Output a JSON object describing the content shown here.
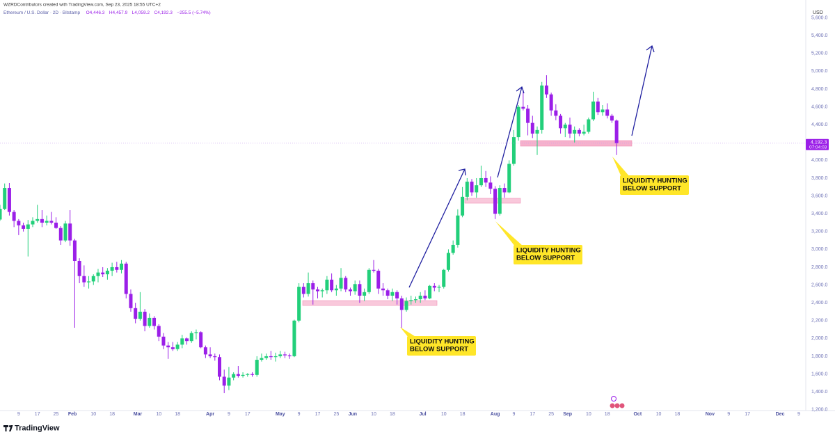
{
  "header": {
    "credit": "WZRDContributors created with TradingView.com, Sep 23, 2025 18:55 UTC+2",
    "symbol": "Ethereum / U.S. Dollar · 2D · Bitstamp",
    "ohlc": [
      "O4,446.3",
      "H4,457.9",
      "L4,059.2",
      "C4,192.3"
    ],
    "change": "−255.5 (−5.74%)",
    "logo": "TradingView"
  },
  "chart_data": {
    "type": "candlestick",
    "currency": "USD",
    "up_color": "#22cf7a",
    "down_color": "#9b1fe8",
    "grid": false,
    "ylim": [
      1190,
      5800
    ],
    "yticks": [
      {
        "value": 1200,
        "label": "1,200.0"
      },
      {
        "value": 1400,
        "label": "1,400.0"
      },
      {
        "value": 1600,
        "label": "1,600.0"
      },
      {
        "value": 1800,
        "label": "1,800.0"
      },
      {
        "value": 2000,
        "label": "2,000.0"
      },
      {
        "value": 2200,
        "label": "2,200.0"
      },
      {
        "value": 2400,
        "label": "2,400.0"
      },
      {
        "value": 2600,
        "label": "2,600.0"
      },
      {
        "value": 2800,
        "label": "2,800.0"
      },
      {
        "value": 3000,
        "label": "3,000.0"
      },
      {
        "value": 3200,
        "label": "3,200.0"
      },
      {
        "value": 3400,
        "label": "3,400.0"
      },
      {
        "value": 3600,
        "label": "3,600.0"
      },
      {
        "value": 3800,
        "label": "3,800.0"
      },
      {
        "value": 4000,
        "label": "4,000.0"
      },
      {
        "value": 4200,
        "label": "4,200.0"
      },
      {
        "value": 4400,
        "label": "4,400.0"
      },
      {
        "value": 4600,
        "label": "4,600.0"
      },
      {
        "value": 4800,
        "label": "4,800.0"
      },
      {
        "value": 5000,
        "label": "5,000.0"
      },
      {
        "value": 5200,
        "label": "5,200.0"
      },
      {
        "value": 5400,
        "label": "5,400.0"
      },
      {
        "value": 5600,
        "label": "5,600.0"
      }
    ],
    "xlim": [
      "2025-01-01",
      "2025-12-12"
    ],
    "xticks": [
      {
        "value": "2025-01-09",
        "label": "9"
      },
      {
        "value": "2025-01-17",
        "label": "17"
      },
      {
        "value": "2025-01-25",
        "label": "25"
      },
      {
        "value": "2025-02-01",
        "label": "Feb"
      },
      {
        "value": "2025-02-10",
        "label": "10"
      },
      {
        "value": "2025-02-18",
        "label": "18"
      },
      {
        "value": "2025-03-01",
        "label": "Mar"
      },
      {
        "value": "2025-03-10",
        "label": "10"
      },
      {
        "value": "2025-03-18",
        "label": "18"
      },
      {
        "value": "2025-04-01",
        "label": "Apr"
      },
      {
        "value": "2025-04-09",
        "label": "9"
      },
      {
        "value": "2025-04-17",
        "label": "17"
      },
      {
        "value": "2025-05-01",
        "label": "May"
      },
      {
        "value": "2025-05-09",
        "label": "9"
      },
      {
        "value": "2025-05-17",
        "label": "17"
      },
      {
        "value": "2025-05-25",
        "label": "25"
      },
      {
        "value": "2025-06-01",
        "label": "Jun"
      },
      {
        "value": "2025-06-10",
        "label": "10"
      },
      {
        "value": "2025-06-18",
        "label": "18"
      },
      {
        "value": "2025-07-01",
        "label": "Jul"
      },
      {
        "value": "2025-07-10",
        "label": "10"
      },
      {
        "value": "2025-07-18",
        "label": "18"
      },
      {
        "value": "2025-08-01",
        "label": "Aug"
      },
      {
        "value": "2025-08-09",
        "label": "9"
      },
      {
        "value": "2025-08-17",
        "label": "17"
      },
      {
        "value": "2025-08-25",
        "label": "25"
      },
      {
        "value": "2025-09-01",
        "label": "Sep"
      },
      {
        "value": "2025-09-10",
        "label": "10"
      },
      {
        "value": "2025-09-18",
        "label": "18"
      },
      {
        "value": "2025-10-01",
        "label": "Oct"
      },
      {
        "value": "2025-10-10",
        "label": "10"
      },
      {
        "value": "2025-10-18",
        "label": "18"
      },
      {
        "value": "2025-11-01",
        "label": "Nov"
      },
      {
        "value": "2025-11-09",
        "label": "9"
      },
      {
        "value": "2025-11-17",
        "label": "17"
      },
      {
        "value": "2025-12-01",
        "label": "Dec"
      },
      {
        "value": "2025-12-09",
        "label": "9"
      }
    ],
    "x": [
      "2025-01-01",
      "2025-01-03",
      "2025-01-05",
      "2025-01-07",
      "2025-01-09",
      "2025-01-11",
      "2025-01-13",
      "2025-01-15",
      "2025-01-17",
      "2025-01-19",
      "2025-01-21",
      "2025-01-23",
      "2025-01-25",
      "2025-01-27",
      "2025-01-29",
      "2025-01-31",
      "2025-02-02",
      "2025-02-04",
      "2025-02-06",
      "2025-02-08",
      "2025-02-10",
      "2025-02-12",
      "2025-02-14",
      "2025-02-16",
      "2025-02-18",
      "2025-02-20",
      "2025-02-22",
      "2025-02-24",
      "2025-02-26",
      "2025-02-28",
      "2025-03-02",
      "2025-03-04",
      "2025-03-06",
      "2025-03-08",
      "2025-03-10",
      "2025-03-12",
      "2025-03-14",
      "2025-03-16",
      "2025-03-18",
      "2025-03-20",
      "2025-03-22",
      "2025-03-24",
      "2025-03-26",
      "2025-03-28",
      "2025-03-30",
      "2025-04-01",
      "2025-04-03",
      "2025-04-05",
      "2025-04-07",
      "2025-04-09",
      "2025-04-11",
      "2025-04-13",
      "2025-04-15",
      "2025-04-17",
      "2025-04-19",
      "2025-04-21",
      "2025-04-23",
      "2025-04-25",
      "2025-04-27",
      "2025-04-29",
      "2025-05-01",
      "2025-05-03",
      "2025-05-05",
      "2025-05-07",
      "2025-05-09",
      "2025-05-11",
      "2025-05-13",
      "2025-05-15",
      "2025-05-17",
      "2025-05-19",
      "2025-05-21",
      "2025-05-23",
      "2025-05-25",
      "2025-05-27",
      "2025-05-29",
      "2025-05-31",
      "2025-06-02",
      "2025-06-04",
      "2025-06-06",
      "2025-06-08",
      "2025-06-10",
      "2025-06-12",
      "2025-06-14",
      "2025-06-16",
      "2025-06-18",
      "2025-06-20",
      "2025-06-22",
      "2025-06-24",
      "2025-06-26",
      "2025-06-28",
      "2025-06-30",
      "2025-07-02",
      "2025-07-04",
      "2025-07-06",
      "2025-07-08",
      "2025-07-10",
      "2025-07-12",
      "2025-07-14",
      "2025-07-16",
      "2025-07-18",
      "2025-07-20",
      "2025-07-22",
      "2025-07-24",
      "2025-07-26",
      "2025-07-28",
      "2025-07-30",
      "2025-08-01",
      "2025-08-03",
      "2025-08-05",
      "2025-08-07",
      "2025-08-09",
      "2025-08-11",
      "2025-08-13",
      "2025-08-15",
      "2025-08-17",
      "2025-08-19",
      "2025-08-21",
      "2025-08-23",
      "2025-08-25",
      "2025-08-27",
      "2025-08-29",
      "2025-08-31",
      "2025-09-02",
      "2025-09-04",
      "2025-09-06",
      "2025-09-08",
      "2025-09-10",
      "2025-09-12",
      "2025-09-14",
      "2025-09-16",
      "2025-09-18",
      "2025-09-20",
      "2025-09-22"
    ],
    "ohlc": [
      [
        3335,
        3500,
        3320,
        3455
      ],
      [
        3455,
        3740,
        3440,
        3690
      ],
      [
        3690,
        3745,
        3380,
        3420
      ],
      [
        3420,
        3440,
        3250,
        3320
      ],
      [
        3320,
        3340,
        3160,
        3270
      ],
      [
        3270,
        3300,
        3200,
        3230
      ],
      [
        3230,
        3330,
        2920,
        3280
      ],
      [
        3280,
        3360,
        3250,
        3320
      ],
      [
        3320,
        3500,
        3300,
        3340
      ],
      [
        3340,
        3440,
        3250,
        3300
      ],
      [
        3300,
        3380,
        3270,
        3320
      ],
      [
        3320,
        3420,
        3280,
        3300
      ],
      [
        3300,
        3360,
        3230,
        3240
      ],
      [
        3240,
        3260,
        3050,
        3100
      ],
      [
        3100,
        3320,
        3080,
        3290
      ],
      [
        3290,
        3440,
        3040,
        3100
      ],
      [
        3100,
        3120,
        2120,
        2870
      ],
      [
        2870,
        2900,
        2620,
        2700
      ],
      [
        2700,
        2820,
        2580,
        2630
      ],
      [
        2630,
        2700,
        2560,
        2640
      ],
      [
        2640,
        2720,
        2600,
        2700
      ],
      [
        2700,
        2780,
        2630,
        2740
      ],
      [
        2740,
        2800,
        2690,
        2720
      ],
      [
        2720,
        2790,
        2660,
        2760
      ],
      [
        2760,
        2850,
        2700,
        2800
      ],
      [
        2800,
        2860,
        2740,
        2770
      ],
      [
        2770,
        2880,
        2730,
        2840
      ],
      [
        2840,
        2860,
        2450,
        2500
      ],
      [
        2500,
        2550,
        2300,
        2340
      ],
      [
        2340,
        2400,
        2170,
        2220
      ],
      [
        2220,
        2520,
        2200,
        2300
      ],
      [
        2300,
        2330,
        2080,
        2140
      ],
      [
        2140,
        2280,
        2120,
        2230
      ],
      [
        2230,
        2250,
        2100,
        2140
      ],
      [
        2140,
        2160,
        1970,
        2020
      ],
      [
        2020,
        2060,
        1880,
        1920
      ],
      [
        1920,
        1960,
        1770,
        1900
      ],
      [
        1900,
        1960,
        1860,
        1880
      ],
      [
        1880,
        1960,
        1860,
        1930
      ],
      [
        1930,
        2040,
        1890,
        2000
      ],
      [
        2000,
        2010,
        1930,
        1970
      ],
      [
        1970,
        2080,
        1950,
        2060
      ],
      [
        2060,
        2100,
        1990,
        2070
      ],
      [
        2070,
        2080,
        1890,
        1900
      ],
      [
        1900,
        1920,
        1780,
        1820
      ],
      [
        1820,
        1900,
        1780,
        1800
      ],
      [
        1800,
        1830,
        1750,
        1790
      ],
      [
        1790,
        1820,
        1530,
        1570
      ],
      [
        1570,
        1650,
        1385,
        1470
      ],
      [
        1470,
        1680,
        1420,
        1560
      ],
      [
        1560,
        1620,
        1530,
        1600
      ],
      [
        1600,
        1690,
        1560,
        1580
      ],
      [
        1580,
        1620,
        1560,
        1590
      ],
      [
        1590,
        1610,
        1570,
        1600
      ],
      [
        1600,
        1620,
        1570,
        1590
      ],
      [
        1590,
        1800,
        1570,
        1760
      ],
      [
        1760,
        1830,
        1740,
        1780
      ],
      [
        1780,
        1830,
        1760,
        1800
      ],
      [
        1800,
        1860,
        1760,
        1790
      ],
      [
        1790,
        1840,
        1740,
        1800
      ],
      [
        1800,
        1860,
        1780,
        1820
      ],
      [
        1820,
        1850,
        1780,
        1810
      ],
      [
        1810,
        1830,
        1770,
        1800
      ],
      [
        1800,
        2210,
        1790,
        2200
      ],
      [
        2200,
        2620,
        2180,
        2580
      ],
      [
        2580,
        2620,
        2460,
        2500
      ],
      [
        2500,
        2740,
        2470,
        2620
      ],
      [
        2620,
        2650,
        2380,
        2550
      ],
      [
        2550,
        2580,
        2450,
        2530
      ],
      [
        2530,
        2560,
        2460,
        2540
      ],
      [
        2540,
        2700,
        2500,
        2660
      ],
      [
        2660,
        2730,
        2520,
        2540
      ],
      [
        2540,
        2600,
        2480,
        2560
      ],
      [
        2560,
        2790,
        2530,
        2680
      ],
      [
        2680,
        2700,
        2520,
        2550
      ],
      [
        2550,
        2570,
        2480,
        2530
      ],
      [
        2530,
        2650,
        2490,
        2610
      ],
      [
        2610,
        2650,
        2400,
        2480
      ],
      [
        2480,
        2560,
        2420,
        2520
      ],
      [
        2520,
        2790,
        2500,
        2770
      ],
      [
        2770,
        2880,
        2740,
        2760
      ],
      [
        2760,
        2780,
        2500,
        2560
      ],
      [
        2560,
        2620,
        2480,
        2540
      ],
      [
        2540,
        2560,
        2440,
        2480
      ],
      [
        2480,
        2560,
        2420,
        2520
      ],
      [
        2520,
        2540,
        2380,
        2450
      ],
      [
        2450,
        2480,
        2120,
        2320
      ],
      [
        2320,
        2460,
        2300,
        2420
      ],
      [
        2420,
        2480,
        2380,
        2430
      ],
      [
        2430,
        2470,
        2400,
        2440
      ],
      [
        2440,
        2520,
        2400,
        2480
      ],
      [
        2480,
        2540,
        2430,
        2450
      ],
      [
        2450,
        2600,
        2440,
        2590
      ],
      [
        2590,
        2620,
        2530,
        2570
      ],
      [
        2570,
        2600,
        2520,
        2580
      ],
      [
        2580,
        2780,
        2560,
        2770
      ],
      [
        2770,
        3000,
        2750,
        2960
      ],
      [
        2960,
        3100,
        2940,
        3050
      ],
      [
        3050,
        3450,
        3020,
        3380
      ],
      [
        3380,
        3700,
        3360,
        3590
      ],
      [
        3590,
        3800,
        3550,
        3760
      ],
      [
        3760,
        3790,
        3600,
        3640
      ],
      [
        3640,
        3800,
        3580,
        3720
      ],
      [
        3720,
        3940,
        3700,
        3800
      ],
      [
        3800,
        3880,
        3700,
        3750
      ],
      [
        3750,
        3820,
        3620,
        3680
      ],
      [
        3680,
        3710,
        3340,
        3400
      ],
      [
        3400,
        3720,
        3380,
        3690
      ],
      [
        3690,
        3740,
        3580,
        3640
      ],
      [
        3640,
        4000,
        3630,
        3960
      ],
      [
        3960,
        4340,
        3940,
        4260
      ],
      [
        4260,
        4620,
        4220,
        4600
      ],
      [
        4600,
        4790,
        4560,
        4580
      ],
      [
        4580,
        4620,
        4280,
        4420
      ],
      [
        4420,
        4500,
        4250,
        4300
      ],
      [
        4300,
        4380,
        4060,
        4340
      ],
      [
        4340,
        4880,
        4300,
        4840
      ],
      [
        4840,
        4955,
        4700,
        4740
      ],
      [
        4740,
        4760,
        4500,
        4560
      ],
      [
        4560,
        4630,
        4450,
        4500
      ],
      [
        4500,
        4520,
        4300,
        4360
      ],
      [
        4360,
        4420,
        4260,
        4400
      ],
      [
        4400,
        4480,
        4250,
        4300
      ],
      [
        4300,
        4380,
        4200,
        4340
      ],
      [
        4340,
        4360,
        4270,
        4300
      ],
      [
        4300,
        4400,
        4280,
        4320
      ],
      [
        4320,
        4480,
        4300,
        4460
      ],
      [
        4460,
        4770,
        4440,
        4660
      ],
      [
        4660,
        4700,
        4510,
        4540
      ],
      [
        4540,
        4620,
        4500,
        4570
      ],
      [
        4570,
        4640,
        4470,
        4500
      ],
      [
        4500,
        4520,
        4420,
        4446.3
      ],
      [
        4446.3,
        4457.9,
        4059.2,
        4192.3
      ]
    ],
    "last_price": {
      "value": 4192.3,
      "label": "4,192.3"
    },
    "countdown": "07:04:03",
    "annotations": [
      {
        "lines": [
          "LIQUIDITY HUNTING",
          "BELOW SUPPORT"
        ]
      },
      {
        "lines": [
          "LIQUIDITY HUNTING",
          "BELOW SUPPORT"
        ]
      },
      {
        "lines": [
          "LIQUIDITY HUNTING",
          "BELOW SUPPORT"
        ]
      }
    ]
  }
}
